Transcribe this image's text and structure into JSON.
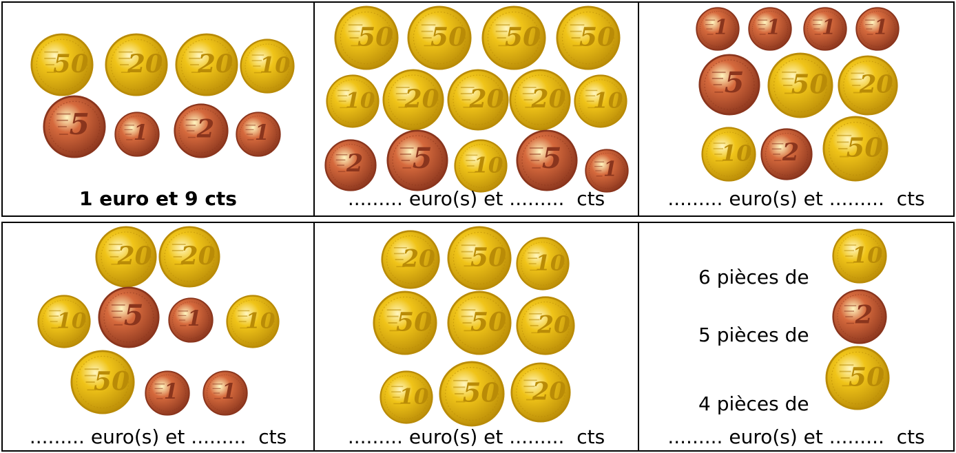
{
  "colors": {
    "gold": "#f0c419",
    "gold_dark": "#b98b07",
    "copper": "#d66a3d",
    "copper_dark": "#8a351d"
  },
  "coin_labels": {
    "c1": "1",
    "c2": "2",
    "c5": "5",
    "c10": "10",
    "c20": "20",
    "c50": "50"
  },
  "cells": [
    {
      "caption": "1 euro et 9 cts"
    },
    {
      "caption": "......... euro(s) et .........  cts"
    },
    {
      "caption": "......... euro(s) et .........  cts"
    },
    {
      "caption": "......... euro(s) et .........  cts"
    },
    {
      "caption": "......... euro(s) et .........  cts"
    },
    {
      "caption": "......... euro(s) et .........  cts"
    }
  ],
  "lines": [
    {
      "label": "6 pièces de"
    },
    {
      "label": "5 pièces de"
    },
    {
      "label": "4 pièces de"
    }
  ]
}
